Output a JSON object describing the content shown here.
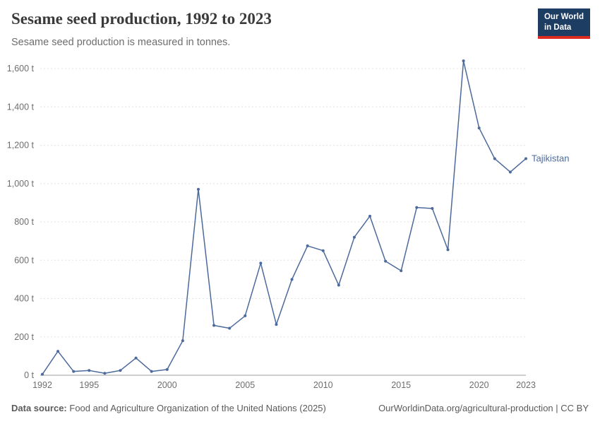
{
  "header": {
    "title": "Sesame seed production, 1992 to 2023",
    "subtitle": "Sesame seed production is measured in tonnes.",
    "logo": {
      "line1": "Our World",
      "line2": "in Data"
    }
  },
  "footer": {
    "source_label": "Data source:",
    "source_text": "Food and Agriculture Organization of the United Nations (2025)",
    "credit": "OurWorldinData.org/agricultural-production | CC BY"
  },
  "chart_data": {
    "type": "line",
    "title": "Sesame seed production, 1992 to 2023",
    "xlabel": "",
    "ylabel": "tonnes",
    "ylim": [
      0,
      1600
    ],
    "grid": "dashed-horizontal",
    "legend_position": "end-of-line-label",
    "yticks": [
      0,
      200,
      400,
      600,
      800,
      1000,
      1200,
      1400,
      1600
    ],
    "ytick_labels": [
      "0 t",
      "200 t",
      "400 t",
      "600 t",
      "800 t",
      "1,000 t",
      "1,200 t",
      "1,400 t",
      "1,600 t"
    ],
    "xticks": [
      1992,
      1995,
      2000,
      2005,
      2010,
      2015,
      2020,
      2023
    ],
    "series": [
      {
        "name": "Tajikistan",
        "color": "#4c6a9c",
        "x": [
          1992,
          1993,
          1994,
          1995,
          1996,
          1997,
          1998,
          1999,
          2000,
          2001,
          2002,
          2003,
          2004,
          2005,
          2006,
          2007,
          2008,
          2009,
          2010,
          2011,
          2012,
          2013,
          2014,
          2015,
          2016,
          2017,
          2018,
          2019,
          2020,
          2021,
          2022,
          2023
        ],
        "values": [
          5,
          125,
          20,
          25,
          10,
          25,
          90,
          20,
          30,
          180,
          970,
          260,
          245,
          310,
          585,
          265,
          500,
          675,
          650,
          470,
          720,
          830,
          595,
          545,
          875,
          870,
          655,
          1640,
          1290,
          1130,
          1060,
          1130
        ]
      }
    ]
  }
}
